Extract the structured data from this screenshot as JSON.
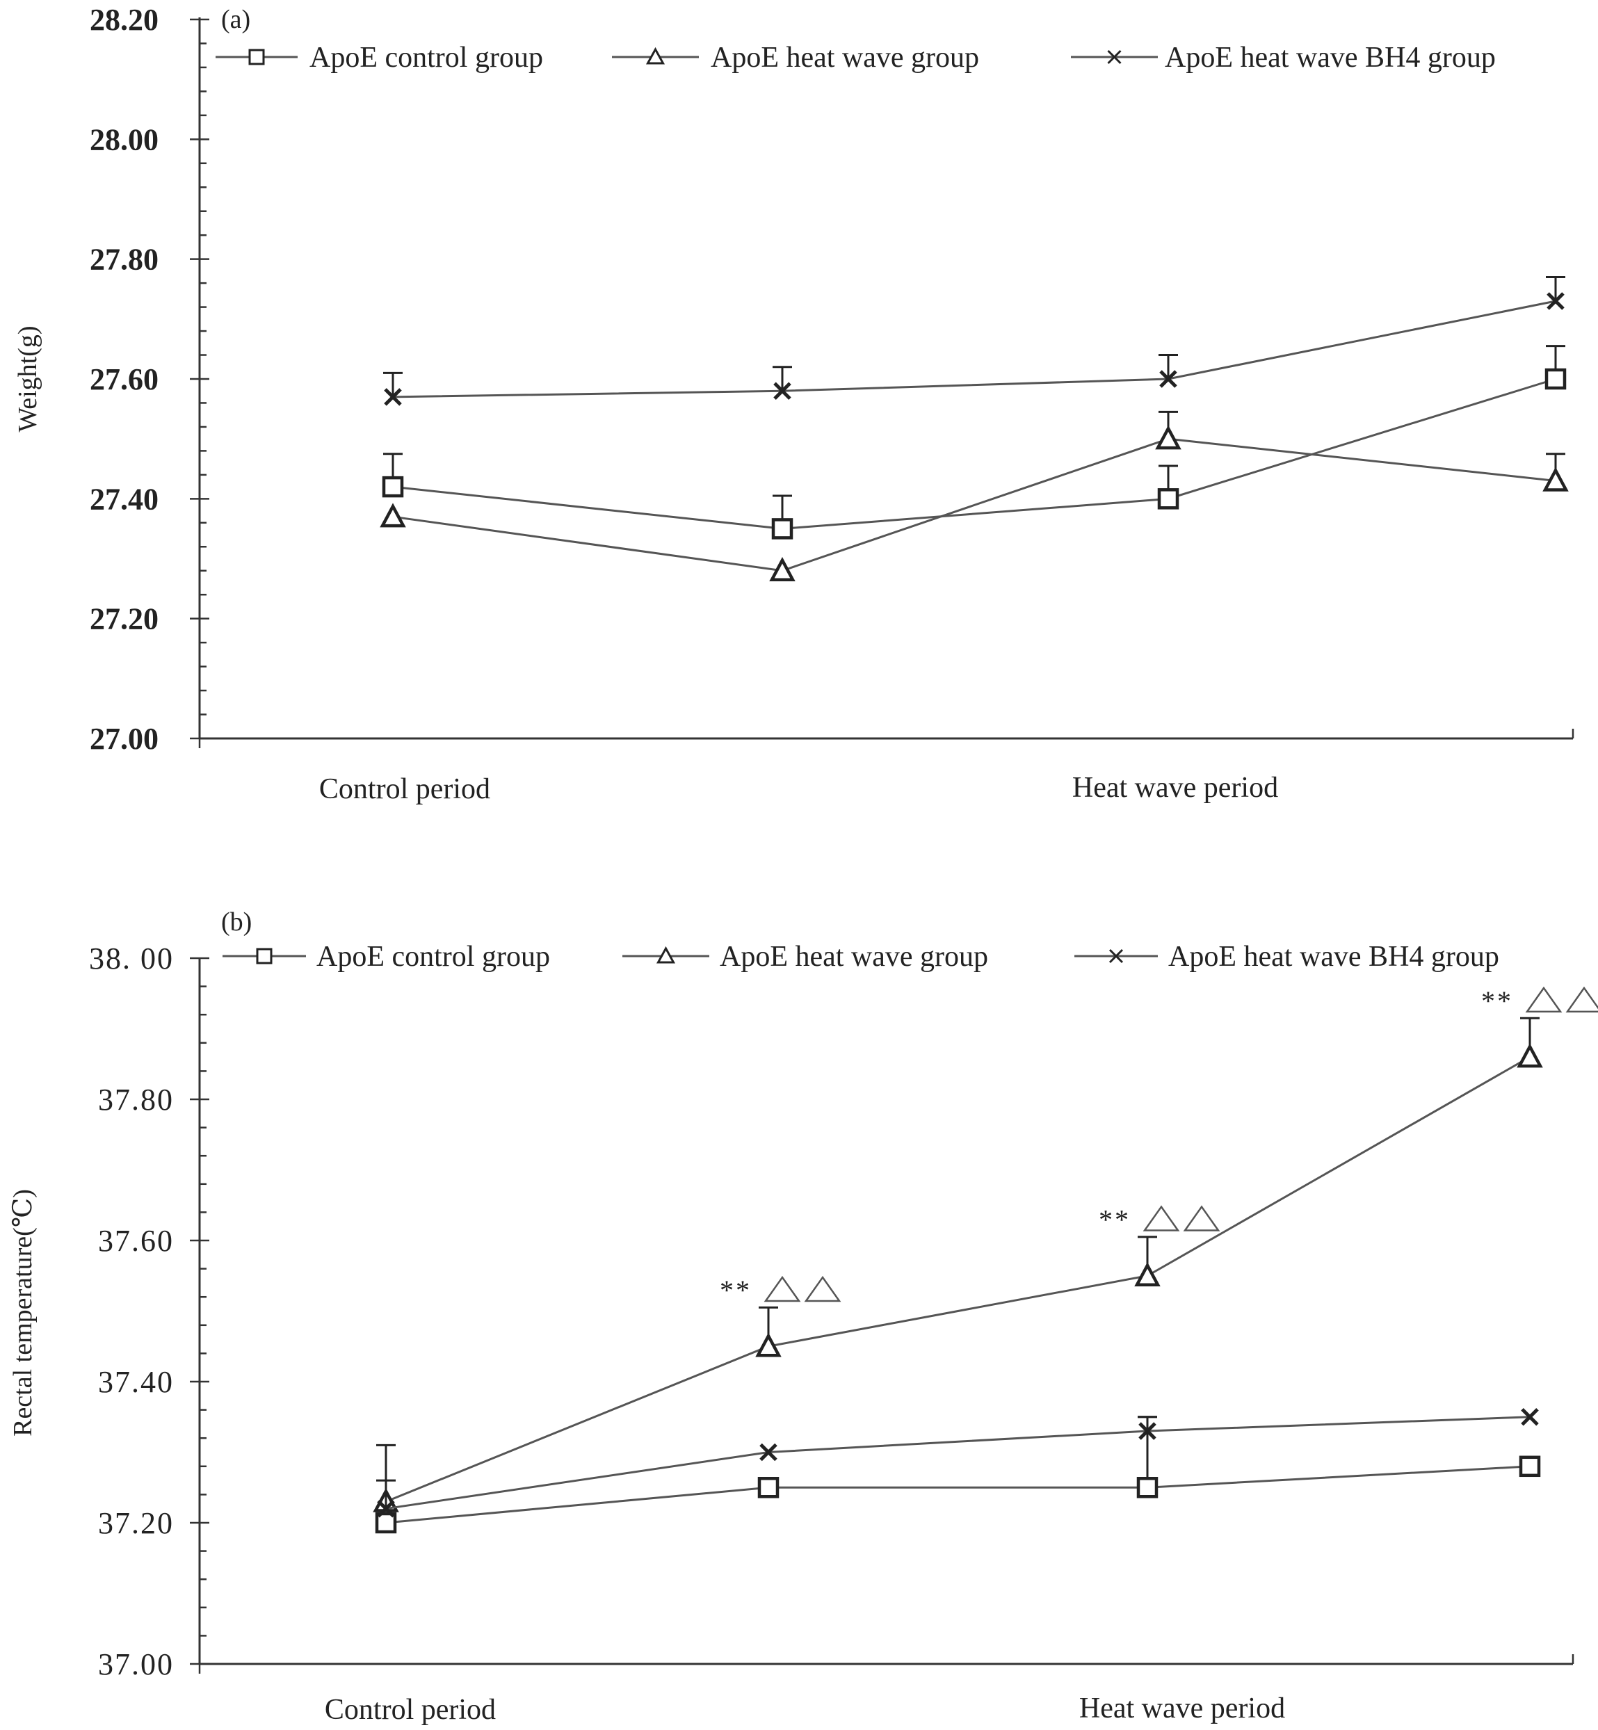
{
  "chart_data": [
    {
      "panel_label": "(a)",
      "type": "line",
      "ylabel": "Weight(g)",
      "xlabel": "",
      "ylim": [
        27.0,
        28.2
      ],
      "yticks": [
        "27.00",
        "27.20",
        "27.40",
        "27.60",
        "27.80",
        "28.00",
        "28.20"
      ],
      "y_tick_values": [
        27.0,
        27.2,
        27.4,
        27.6,
        27.8,
        28.0,
        28.2
      ],
      "minor_ticks_per_major": 5,
      "category_labels": [
        "Control period",
        "Heat wave period"
      ],
      "x_points": 4,
      "legend_position": "top",
      "series": [
        {
          "name": "ApoE control group",
          "marker": "square",
          "values": [
            27.42,
            27.35,
            27.4,
            27.6
          ],
          "errors": [
            0.055,
            0.055,
            0.055,
            0.055
          ]
        },
        {
          "name": "ApoE heat wave group",
          "marker": "triangle",
          "values": [
            27.37,
            27.28,
            27.5,
            27.43
          ],
          "errors": [
            null,
            null,
            0.045,
            0.045
          ]
        },
        {
          "name": "ApoE heat wave BH4 group",
          "marker": "x",
          "values": [
            27.57,
            27.58,
            27.6,
            27.73
          ],
          "errors": [
            0.04,
            0.04,
            0.04,
            0.04
          ]
        }
      ],
      "annotations": []
    },
    {
      "panel_label": "(b)",
      "type": "line",
      "ylabel": "Rectal temperature(℃)",
      "xlabel": "",
      "ylim": [
        37.0,
        38.0
      ],
      "yticks": [
        "37.00",
        "37.20",
        "37.40",
        "37.60",
        "37.80",
        "38. 00"
      ],
      "y_tick_values": [
        37.0,
        37.2,
        37.4,
        37.6,
        37.8,
        38.0
      ],
      "minor_ticks_per_major": 5,
      "category_labels": [
        "Control period",
        "Heat wave period"
      ],
      "x_points": 4,
      "legend_position": "top",
      "series": [
        {
          "name": "ApoE control group",
          "marker": "square",
          "values": [
            37.2,
            37.25,
            37.25,
            37.28
          ],
          "errors": [
            null,
            null,
            0.1,
            null
          ]
        },
        {
          "name": "ApoE heat wave group",
          "marker": "triangle",
          "values": [
            37.23,
            37.45,
            37.55,
            37.86
          ],
          "errors": [
            0.08,
            0.055,
            0.055,
            0.055
          ]
        },
        {
          "name": "ApoE heat wave BH4 group",
          "marker": "x",
          "values": [
            37.22,
            37.3,
            37.33,
            37.35
          ],
          "errors": [
            0.04,
            null,
            0.02,
            null
          ]
        }
      ],
      "annotations": [
        {
          "text": "**△△",
          "point_index": 1,
          "y": 37.53
        },
        {
          "text": "**△△",
          "point_index": 2,
          "y": 37.63
        },
        {
          "text": "**△△",
          "point_index": 3,
          "y": 37.94
        }
      ]
    }
  ]
}
